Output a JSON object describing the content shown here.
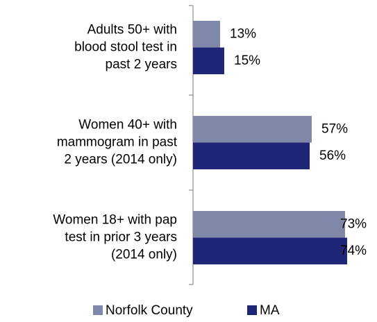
{
  "chart_data": {
    "type": "barh",
    "categories": [
      "Adults 50+ with\nblood stool test in\npast 2 years",
      "Women 40+ with\nmammogram in past\n2 years (2014 only)",
      "Women 18+ with pap\ntest in prior 3 years\n(2014 only)"
    ],
    "series": [
      {
        "name": "Norfolk County",
        "color": "#8088aa",
        "values": [
          13,
          57,
          73
        ],
        "value_labels": [
          "13%",
          "57%",
          "73%"
        ]
      },
      {
        "name": "MA",
        "color": "#1f2677",
        "values": [
          15,
          56,
          74
        ],
        "value_labels": [
          "15%",
          "56%",
          "74%"
        ]
      }
    ]
  }
}
